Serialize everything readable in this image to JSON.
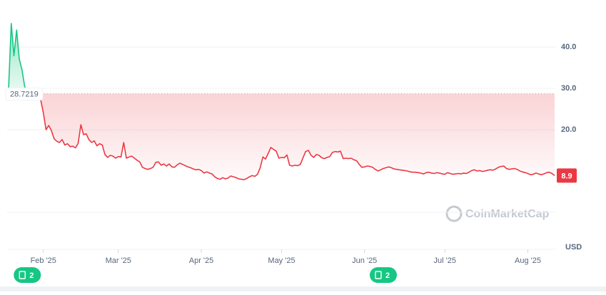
{
  "chart_data": {
    "type": "line",
    "x": [
      0,
      1,
      2,
      3,
      4,
      5,
      6,
      7,
      8,
      9,
      10,
      11,
      12,
      13,
      14,
      15,
      16,
      17,
      18,
      19,
      20,
      21,
      22,
      23,
      24,
      25,
      26,
      27,
      28,
      29,
      30,
      31,
      32,
      33,
      34,
      35,
      36,
      37,
      38,
      39,
      40,
      41,
      42,
      43,
      44,
      45,
      46,
      47,
      48,
      49,
      50,
      51,
      52,
      53,
      54,
      55,
      56,
      57,
      58,
      59,
      60,
      61,
      62,
      63,
      64,
      65,
      66,
      67,
      68,
      69,
      70,
      71,
      72,
      73,
      74,
      75,
      76,
      77,
      78,
      79,
      80,
      81,
      82,
      83,
      84,
      85,
      86,
      87,
      88,
      89,
      90,
      91,
      92,
      93,
      94,
      95,
      96,
      97,
      98,
      99,
      100,
      101,
      102,
      103,
      104,
      105,
      106,
      107,
      108,
      109,
      110,
      111,
      112,
      113,
      114,
      115,
      116,
      117,
      118,
      119,
      120,
      121,
      122,
      123,
      124,
      125,
      126,
      127,
      128,
      129,
      130,
      131,
      132,
      133,
      134,
      135,
      136,
      137,
      138,
      139,
      140,
      141,
      142,
      143,
      144,
      145,
      146,
      147,
      148,
      149,
      150,
      151,
      152,
      153,
      154,
      155,
      156,
      157,
      158,
      159,
      160,
      161,
      162,
      163,
      164,
      165,
      166,
      167,
      168,
      169,
      170,
      171,
      172,
      173,
      174,
      175,
      176,
      177,
      178,
      179,
      180,
      181,
      182,
      183,
      184,
      185,
      186,
      187,
      188,
      189,
      190,
      191,
      192,
      193,
      194,
      195,
      196,
      197,
      198,
      199,
      200,
      201,
      202,
      203,
      204
    ],
    "values": [
      29.8,
      45.7,
      37.9,
      44.1,
      37.1,
      34.5,
      30.5,
      28.8,
      28.7,
      28.6,
      28.5,
      28.3,
      27.2,
      24.0,
      20.0,
      21.0,
      19.8,
      17.8,
      17.2,
      16.9,
      17.6,
      16.3,
      16.6,
      15.9,
      16.0,
      15.6,
      16.7,
      21.2,
      18.8,
      19.0,
      17.6,
      16.9,
      17.3,
      16.1,
      16.6,
      16.3,
      14.0,
      13.3,
      13.8,
      13.6,
      13.1,
      13.5,
      13.4,
      16.9,
      13.1,
      13.4,
      13.6,
      13.1,
      12.6,
      12.2,
      10.9,
      10.6,
      10.4,
      10.6,
      10.9,
      12.1,
      12.2,
      11.4,
      11.7,
      11.2,
      11.7,
      11.0,
      10.9,
      11.5,
      11.9,
      11.6,
      11.3,
      11.0,
      10.8,
      10.5,
      10.3,
      10.4,
      10.1,
      9.5,
      9.8,
      9.5,
      9.3,
      8.6,
      8.2,
      8.0,
      8.4,
      8.1,
      8.3,
      8.8,
      8.6,
      8.4,
      8.1,
      8.0,
      7.9,
      8.2,
      8.6,
      8.9,
      8.7,
      9.2,
      10.8,
      13.4,
      12.9,
      14.3,
      15.7,
      15.2,
      14.8,
      13.1,
      13.3,
      13.2,
      13.9,
      11.4,
      11.2,
      11.4,
      11.3,
      11.6,
      13.2,
      14.7,
      15.0,
      13.8,
      13.3,
      14.0,
      13.8,
      13.2,
      13.0,
      13.3,
      13.5,
      14.5,
      14.7,
      14.6,
      14.8,
      13.0,
      13.1,
      13.0,
      13.1,
      12.7,
      12.5,
      11.6,
      10.9,
      11.0,
      11.2,
      11.1,
      10.9,
      10.4,
      10.0,
      10.3,
      10.6,
      10.8,
      11.0,
      10.8,
      10.5,
      10.4,
      10.3,
      10.2,
      10.1,
      10.0,
      9.8,
      9.7,
      9.7,
      9.6,
      9.5,
      9.3,
      9.6,
      9.7,
      9.5,
      9.4,
      9.6,
      9.5,
      9.3,
      9.2,
      9.6,
      9.4,
      9.2,
      9.3,
      9.4,
      9.3,
      9.5,
      9.4,
      9.7,
      10.1,
      10.3,
      10.0,
      10.1,
      9.9,
      10.0,
      10.2,
      10.3,
      10.2,
      10.5,
      10.9,
      11.1,
      11.2,
      10.6,
      10.4,
      10.5,
      10.6,
      10.4,
      10.0,
      9.8,
      9.6,
      9.4,
      9.1,
      9.2,
      9.5,
      9.3,
      9.1,
      9.3,
      9.6,
      9.7,
      9.4,
      8.9
    ],
    "baseline": 28.7219,
    "up_color": "#16c784",
    "down_color": "#ea3943",
    "xlim": [
      0,
      204
    ],
    "xticks": [
      {
        "value": 13,
        "label": "Feb '25"
      },
      {
        "value": 41,
        "label": "Mar '25"
      },
      {
        "value": 72,
        "label": "Apr '25"
      },
      {
        "value": 102,
        "label": "May '25"
      },
      {
        "value": 133,
        "label": "Jun '25"
      },
      {
        "value": 163,
        "label": "Jul '25"
      },
      {
        "value": 194,
        "label": "Aug '25"
      }
    ],
    "ylim": [
      0,
      50
    ],
    "yticks": [
      {
        "value": 20,
        "label": "20.0"
      },
      {
        "value": 30,
        "label": "30.0"
      },
      {
        "value": 40,
        "label": "40.0"
      }
    ],
    "grid": true,
    "y_unit": "USD",
    "watermark": "CoinMarketCap",
    "events": [
      {
        "x": 7,
        "count": 2
      },
      {
        "x": 140,
        "count": 2
      }
    ]
  }
}
